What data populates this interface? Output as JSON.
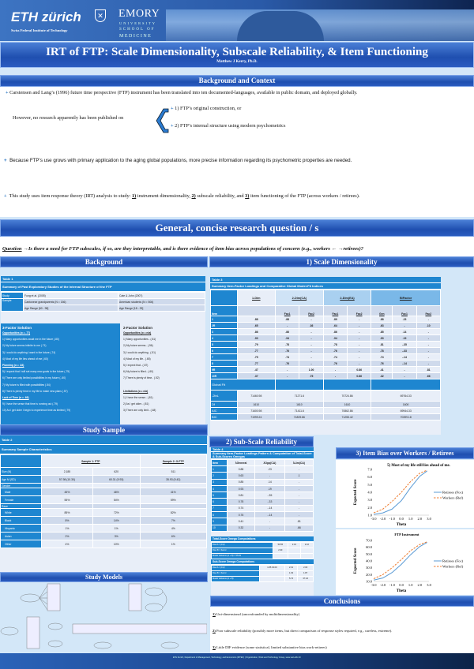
{
  "header": {
    "eth_logo": "ETH zürich",
    "eth_subtitle": "Swiss Federal Institute of Technology",
    "emory_logo": "EMORY",
    "emory_sub1": "UNIVERSITY",
    "emory_sub2": "SCHOOL OF",
    "emory_sub3": "MEDICINE",
    "title": "IRT of FTP: Scale Dimensionality, Subscale Reliability, & Item Functioning",
    "author": "Matthew J Kerry, Ph.D."
  },
  "background_context": {
    "heading": "Background and Context",
    "p1": "Carstensen and Lang’s (1996) future time perspective (FTP) instrument has been translated into ten documented-languages, available in public domain, and deployed globally.",
    "p2_lead": "However, no research apparently has been published on",
    "p2_a": "1) FTP’s original construction, or",
    "p2_b": "2) FTP’s internal structure using modern psychometrics",
    "p3": "Because FTP’s use grows with primary application to the aging global populations, more precise information regarding its psychometric properties are needed.",
    "p4_pre": "This study uses item response theory (IRT) analysis to study: ",
    "p4_n1": "1)",
    "p4_t1": " instrument dimensionality, ",
    "p4_n2": "2)",
    "p4_t2": " subscale reliability, and ",
    "p4_n3": "3)",
    "p4_t3": " item functioning of the FTP (across workers / retirees)."
  },
  "research_question": {
    "heading": "General, concise research question / s",
    "label": "Question",
    "text": "→Is there a need for FTP subscales, if so, are they interpretable, and is there evidence of item bias across populations of concern (e.g., workers ← →retirees)?"
  },
  "sections": {
    "background": "Background",
    "dimensionality": "1) Scale Dimensionality",
    "study_sample": "Study Sample",
    "study_models": "Study Models",
    "reliability": "2) Sub-Scale Reliability",
    "item_bias": "3) Item Bias over Workers / Retirees",
    "conclusions": "Conclusions"
  },
  "table1": {
    "label": "Table 1",
    "title": "Summary of Past Exploratory Studies of the Internal Structure of the FTP",
    "study_label": "Study",
    "study_a": "Fung et al. (2005)",
    "study_b": "Cate & John (2007)",
    "sample_label": "Sample",
    "sample_a": "Cantonese grandparents (N = 156)",
    "sample_b": "American students (N = 506)",
    "age_a": "Age Range [60 - 98]",
    "age_b": "Age Range [18 - 25]",
    "left_title": "3-Factor Solution",
    "right_title": "2-Factor Solution",
    "left_items": [
      "Opportunities (α = .77)",
      "1) Many opportunities await me in the future (.80)",
      "2) My future seems infinite to me (.71)",
      "3) I could do anything I want in the future (.74)",
      "4) Most of my life lies ahead of me (.60)",
      "Planning (α = .84)",
      "5) I expect that I will set many new goals in the future (.75)",
      "6) There are only limited possibilities in my future (-.60)",
      "7) My future is filled with possibilities (.54)",
      "8) There is plenty time in my life to make new plans (.57)",
      "Lack of Time (α = .66)",
      "9) I have the sense that time is running out (.79)",
      "10) As I get older I begin to experience time as limited (.79)"
    ],
    "right_items": [
      "Opportunities (α = n/a)",
      "1) Many opportunities.. (.81)",
      "2) My future seems.. (.56)",
      "3) I could do anything.. (.51)",
      "4) Most of my life.. (.65)",
      "5) I expect that.. (.87)",
      "6) My future is filled.. (.60)",
      "7) There is plenty of time.. (.52)",
      "",
      "Limitations (α = n/a)",
      "1) I have the sense.. (.81)",
      "2) As I get older.. (.81)",
      "3) There are only limit.. (.48)"
    ]
  },
  "table2": {
    "label": "Table 2",
    "title": "Summary Sample Characteristics",
    "sample1": "Sample 1: FTP",
    "sample2": "Sample 2: O-FTP",
    "rows": [
      [
        "Size (N)",
        "2,185",
        "620",
        "511"
      ],
      [
        "Age M (SD)",
        "57.98 (10.30)",
        "60.31 (9.93)",
        "35.93 (9.42)"
      ],
      [
        "Gender",
        "",
        "",
        ""
      ],
      [
        "Male",
        "45%",
        "46%",
        "41%"
      ],
      [
        "Female",
        "55%",
        "54%",
        "59%"
      ],
      [
        "Race",
        "",
        "",
        ""
      ],
      [
        "White",
        "85%",
        "72%",
        "82%"
      ],
      [
        "Black",
        "8%",
        "14%",
        "7%"
      ],
      [
        "Hispanic",
        "1%",
        "1%",
        "4%"
      ],
      [
        "Asian",
        "2%",
        "3%",
        "6%"
      ],
      [
        "Other",
        "4%",
        "10%",
        "1%"
      ]
    ]
  },
  "table3": {
    "label": "Table 3",
    "title": "Summary Item-Factor Loadings and Comparative Global Model-Fit Indices",
    "models": [
      "1-Dim",
      "2-Dim(CA)",
      "2-Dim(EA)",
      "BiFactor"
    ],
    "subheads": [
      "Item",
      "",
      "Fac1",
      "Fac2",
      "Fac1",
      "Fac2",
      "Gen",
      "Fac1",
      "Fac2"
    ],
    "rows": [
      [
        "1",
        ".88",
        ".88",
        "-",
        ".89",
        "-",
        ".88",
        ".23",
        "-"
      ],
      [
        "2R",
        ".65",
        "-",
        ".36",
        ".64",
        "-",
        ".63",
        "-",
        ".10"
      ],
      [
        "3",
        ".86",
        ".86",
        "-",
        ".86",
        "-",
        ".85",
        ".14",
        "-"
      ],
      [
        "4",
        ".93",
        ".94",
        "-",
        ".94",
        "-",
        ".93",
        ".19",
        "-"
      ],
      [
        "5",
        ".79",
        ".78",
        "-",
        ".78",
        "-",
        ".81",
        "-.35",
        "-"
      ],
      [
        "6",
        ".77",
        ".76",
        "-",
        ".76",
        "-",
        ".78",
        "-.33",
        "-"
      ],
      [
        "7",
        ".75",
        ".74",
        "-",
        ".74",
        "-",
        ".74",
        "-.14",
        "-"
      ],
      [
        "8",
        ".77",
        ".76",
        "-",
        ".76",
        "-",
        ".76",
        "-.14",
        "-"
      ],
      [
        "9R",
        ".47",
        "-",
        "1.00",
        "-",
        "0.86",
        ".41",
        "-",
        ".81"
      ],
      [
        "10R",
        ".37",
        "-",
        ".75",
        "-",
        "0.86",
        ".32",
        "-",
        ".66"
      ]
    ],
    "global_fit": "Global Fit",
    "fit_rows": [
      [
        "-2lnL",
        "71460.98",
        "71271.6",
        "70724.86",
        "69764.33"
      ],
      [
        "Df",
        "1610",
        "1610",
        "1610",
        "1600"
      ],
      [
        "AIC",
        "71600.98",
        "71411.6",
        "70862.86",
        "69944.33"
      ],
      [
        "BIC",
        "71999.24",
        "71809.86",
        "71255.42",
        "70399.18"
      ]
    ]
  },
  "table4": {
    "label": "Table 4",
    "title": "Summary Item-Factor Loadings Pattern & Computation of Total-Score & Sub-Scores Omegas",
    "headers": [
      "Item",
      "λGeneral",
      "λOpp(CA)",
      "λLim(CA)"
    ],
    "rows": [
      [
        "1",
        "0.88",
        ".23",
        "-"
      ],
      [
        "2",
        "0.63",
        "-",
        ".1"
      ],
      [
        "3",
        "0.85",
        ".14",
        "-"
      ],
      [
        "4",
        "0.93",
        ".19",
        "-"
      ],
      [
        "5",
        "0.81",
        "-.35",
        "-"
      ],
      [
        "6",
        "0.78",
        "-.33",
        "-"
      ],
      [
        "7",
        "0.74",
        "-.14",
        "-"
      ],
      [
        "8",
        "0.76",
        "-.14",
        "-"
      ],
      [
        "9",
        "0.41",
        "-",
        ".81"
      ],
      [
        "10",
        "0.32",
        "-",
        ".66"
      ]
    ],
    "total_title": "Total-Score Omega Computations",
    "total_rows": [
      [
        "Row A = (Σλ)²",
        "50.55",
        "2.31",
        "2.16"
      ],
      [
        "Row B = Σerror",
        "2.90",
        "",
        ""
      ],
      [
        "Model Variance (A + B) = 55.63",
        "",
        "",
        ""
      ]
    ],
    "sub_title": "Sub-Score Omega Computations",
    "sub_rows": [
      [
        "Row A = (Σλ)²",
        "1.85  33.09",
        "2.31",
        "2.00"
      ],
      [
        "Row B = Σerror",
        "",
        "1.03",
        "1.87"
      ],
      [
        "Model Variance (A + B)",
        "",
        "5.74",
        "37.24"
      ]
    ]
  },
  "charts": {
    "xlabel": "Theta",
    "ylabel": "Expected Score",
    "legend_focal": "Retirees (Foc)",
    "legend_ref": "Workers (Ref)",
    "color_focal": "#5b9bd5",
    "color_ref": "#ed7d31"
  },
  "chart_data": [
    {
      "type": "line",
      "title": "5) Most of my life still lies ahead of me.",
      "xlabel": "Theta",
      "ylabel": "Expected Score",
      "xlim": [
        -3,
        3
      ],
      "ylim": [
        1,
        7
      ],
      "xticks": [
        "-3.0",
        "-2.0",
        "-1.0",
        "0.0",
        "1.0",
        "2.0",
        "3.0"
      ],
      "yticks": [
        "1.0",
        "2.0",
        "3.0",
        "4.0",
        "5.0",
        "6.0",
        "7.0"
      ],
      "legend": "right",
      "x": [
        -3,
        -2,
        -1,
        0,
        1,
        2,
        2.8
      ],
      "series": [
        {
          "name": "Retirees (Foc)",
          "values": [
            1.1,
            1.3,
            1.8,
            2.9,
            4.6,
            6.1,
            6.8
          ]
        },
        {
          "name": "Workers (Ref)",
          "values": [
            1.3,
            1.8,
            2.8,
            4.0,
            5.4,
            6.5,
            6.9
          ]
        }
      ]
    },
    {
      "type": "line",
      "title": "FTP Instrument",
      "xlabel": "Theta",
      "ylabel": "Expected Score",
      "xlim": [
        -3,
        3
      ],
      "ylim": [
        10,
        70
      ],
      "xticks": [
        "-3.0",
        "-2.0",
        "-1.0",
        "0.0",
        "1.0",
        "2.0",
        "3.0"
      ],
      "yticks": [
        "10.0",
        "20.0",
        "30.0",
        "40.0",
        "50.0",
        "60.0",
        "70.0"
      ],
      "legend": "right",
      "x": [
        -3,
        -2,
        -1,
        0,
        1,
        2,
        2.8
      ],
      "series": [
        {
          "name": "Retirees (Foc)",
          "values": [
            12,
            15,
            23,
            35,
            49,
            61,
            67
          ]
        },
        {
          "name": "Workers (Ref)",
          "values": [
            14,
            20,
            30,
            42,
            55,
            64,
            68
          ]
        }
      ]
    }
  ],
  "conclusions": {
    "items": [
      {
        "num": "1)",
        "text": " Uni-dimensional (unconfounded by multidimensionality)"
      },
      {
        "num": "2)",
        "text": " Poor subscale reliability (possibly more items, but direct comparison of response styles required, e.g., careless, extreme)."
      },
      {
        "num": "3)",
        "text": " Little DIF evidence (some statistical, limited substantive bias work-retirees)"
      }
    ]
  },
  "footer": {
    "text": "ETH Zurich, Department of Management, Technology, and Economics (MTEC) | Organization, Work and Technology Group, www.owt.ethz.ch"
  }
}
